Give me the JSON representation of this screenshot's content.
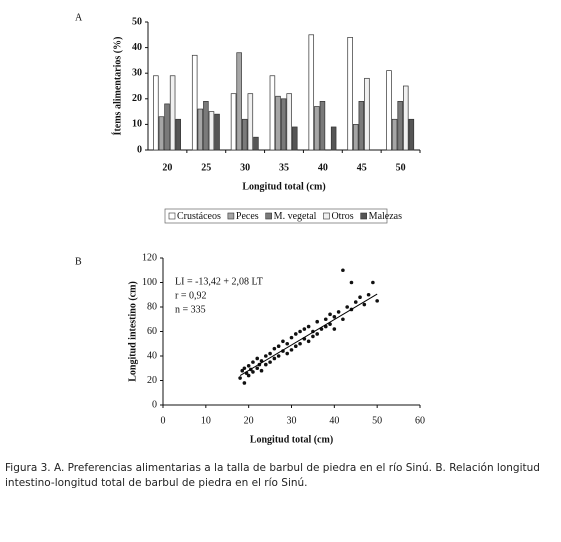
{
  "chart_data": [
    {
      "type": "bar",
      "panel": "A",
      "y_label": "Ítems alimentarios (%)",
      "x_label": "Longitud total (cm)",
      "categories": [
        "20",
        "25",
        "30",
        "35",
        "40",
        "45",
        "50"
      ],
      "series": [
        {
          "name": "Crustáceos",
          "color": "#ffffff",
          "values": [
            29,
            37,
            22,
            29,
            45,
            44,
            31
          ]
        },
        {
          "name": "Peces",
          "color": "#a6a6a6",
          "values": [
            13,
            16,
            38,
            21,
            17,
            10,
            12
          ]
        },
        {
          "name": "M. vegetal",
          "color": "#7a7a7a",
          "values": [
            18,
            19,
            12,
            20,
            19,
            19,
            19
          ]
        },
        {
          "name": "Otros",
          "color": "#f0f0f0",
          "values": [
            29,
            15,
            22,
            22,
            0,
            28,
            25
          ]
        },
        {
          "name": "Malezas",
          "color": "#555555",
          "values": [
            12,
            14,
            5,
            9,
            9,
            0,
            12
          ]
        }
      ],
      "ylim": [
        0,
        50
      ],
      "yticks": [
        0,
        10,
        20,
        30,
        40,
        50
      ]
    },
    {
      "type": "scatter",
      "panel": "B",
      "y_label": "Longitud intestino (cm)",
      "x_label": "Longitud total (cm)",
      "annotations": [
        "LI = -13,42 + 2,08 LT",
        "r = 0,92",
        "n = 335"
      ],
      "color": "#111111",
      "x": [
        18,
        18.5,
        19,
        19,
        19.5,
        20,
        20,
        20.5,
        21,
        21,
        22,
        22,
        22.5,
        23,
        23,
        24,
        24,
        25,
        25,
        26,
        26,
        27,
        27,
        28,
        28,
        29,
        29,
        30,
        30,
        31,
        31,
        32,
        32,
        33,
        33,
        34,
        34,
        35,
        35,
        36,
        36,
        37,
        38,
        38,
        39,
        39,
        40,
        40,
        41,
        42,
        42,
        43,
        44,
        44,
        45,
        46,
        47,
        48,
        49,
        50
      ],
      "y": [
        22,
        28,
        18,
        30,
        26,
        32,
        24,
        29,
        35,
        27,
        30,
        38,
        33,
        36,
        28,
        40,
        33,
        42,
        35,
        38,
        46,
        40,
        48,
        44,
        52,
        42,
        50,
        55,
        45,
        48,
        58,
        50,
        60,
        54,
        62,
        52,
        64,
        60,
        56,
        68,
        58,
        62,
        70,
        64,
        66,
        74,
        72,
        62,
        76,
        70,
        110,
        80,
        78,
        100,
        84,
        88,
        82,
        90,
        100,
        85
      ],
      "fit_line": {
        "x": [
          18,
          50
        ],
        "y": [
          24.02,
          90.58
        ]
      },
      "xlim": [
        0,
        60
      ],
      "xticks": [
        0,
        10,
        20,
        30,
        40,
        50,
        60
      ],
      "ylim": [
        0,
        120
      ],
      "yticks": [
        0,
        20,
        40,
        60,
        80,
        100,
        120
      ]
    }
  ],
  "caption": "Figura 3. A. Preferencias alimentarias a la talla de barbul de piedra en el río Sinú. B. Relación longitud intestino-longitud total de barbul de piedra en el río Sinú."
}
